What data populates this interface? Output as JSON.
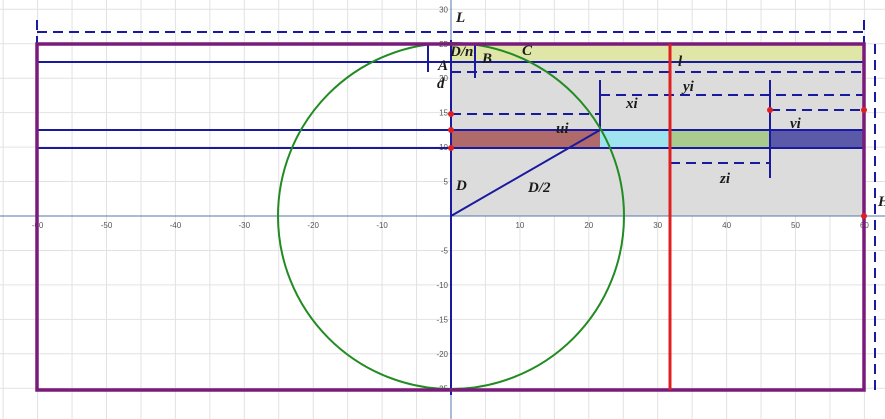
{
  "labels": {
    "L": "L",
    "Dn": "D/n",
    "C": "C",
    "A": "A",
    "B": "B",
    "d": "d",
    "l": "l",
    "yi": "yi",
    "xi": "xi",
    "ui": "ui",
    "vi": "vi",
    "zi": "zi",
    "D": "D",
    "D2": "D/2",
    "H": "H"
  },
  "x_ticks": [
    "-60",
    "-50",
    "-40",
    "-30",
    "-20",
    "-10",
    "10",
    "20",
    "30",
    "40",
    "50",
    "60"
  ],
  "y_ticks": [
    "30",
    "25",
    "20",
    "15",
    "10",
    "5",
    "-5",
    "-10",
    "-15",
    "-20",
    "-25"
  ]
}
